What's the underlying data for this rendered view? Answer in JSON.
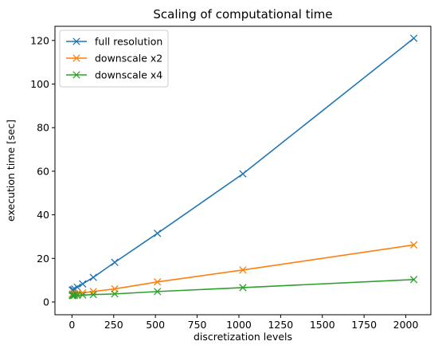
{
  "chart_data": {
    "type": "line",
    "title": "Scaling of computational time",
    "xlabel": "discretization levels",
    "ylabel": "execution time [sec]",
    "xlim": [
      -102,
      2150
    ],
    "ylim": [
      -5.85,
      126.5
    ],
    "xticks": [
      0,
      250,
      500,
      750,
      1000,
      1250,
      1500,
      1750,
      2000
    ],
    "xtick_labels": [
      "0",
      "250",
      "500",
      "750",
      "1000",
      "1250",
      "1500",
      "1750",
      "2000"
    ],
    "yticks": [
      0,
      20,
      40,
      60,
      80,
      100,
      120
    ],
    "ytick_labels": [
      "0",
      "20",
      "40",
      "60",
      "80",
      "100",
      "120"
    ],
    "grid": false,
    "legend_position": "upper-left",
    "marker": "x",
    "series": [
      {
        "name": "full resolution",
        "color": "#1f77b4",
        "x": [
          2,
          4,
          8,
          16,
          32,
          64,
          128,
          256,
          512,
          1024,
          2048
        ],
        "y": [
          5.4,
          5.5,
          5.6,
          6.0,
          6.8,
          8.3,
          11.3,
          18.2,
          31.5,
          58.8,
          121.0
        ]
      },
      {
        "name": "downscale x2",
        "color": "#ff7f0e",
        "x": [
          2,
          4,
          8,
          16,
          32,
          64,
          128,
          256,
          512,
          1024,
          2048
        ],
        "y": [
          3.6,
          3.6,
          3.7,
          3.8,
          3.9,
          4.2,
          4.8,
          6.0,
          9.2,
          14.7,
          26.2
        ]
      },
      {
        "name": "downscale x4",
        "color": "#2ca02c",
        "x": [
          2,
          4,
          8,
          16,
          32,
          64,
          128,
          256,
          512,
          1024,
          2048
        ],
        "y": [
          3.0,
          3.0,
          3.0,
          3.1,
          3.1,
          3.2,
          3.4,
          3.7,
          4.8,
          6.6,
          10.3
        ]
      }
    ]
  }
}
